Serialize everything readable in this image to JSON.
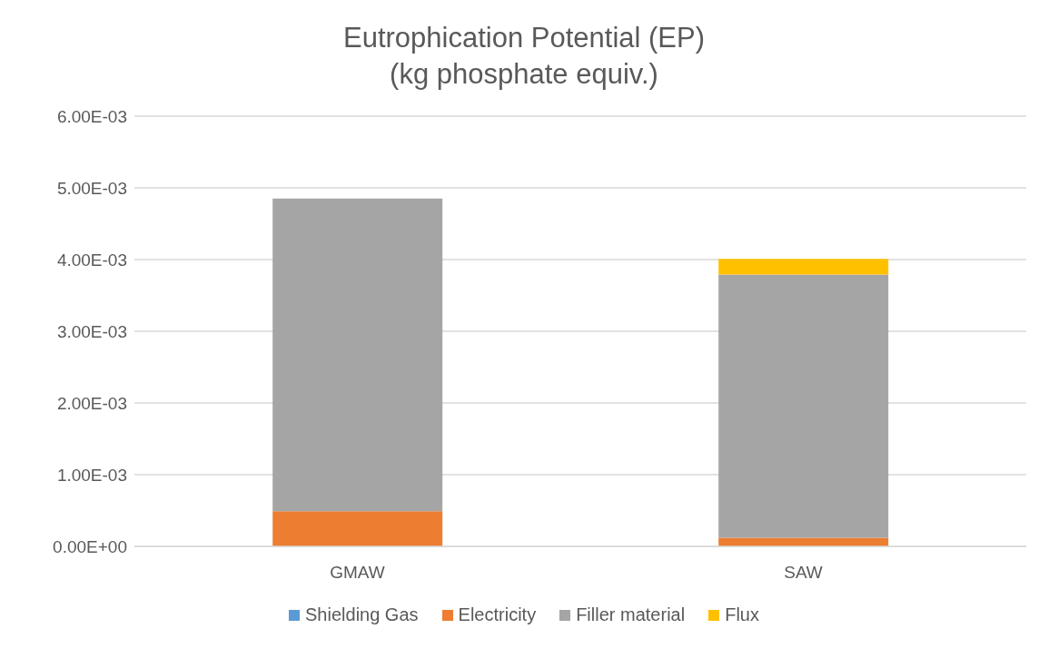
{
  "chart_data": {
    "type": "bar",
    "title": "Eutrophication Potential (EP)\n(kg phosphate equiv.)",
    "categories": [
      "GMAW",
      "SAW"
    ],
    "stacked": true,
    "series": [
      {
        "name": "Shielding Gas",
        "color": "#5b9bd5",
        "values": [
          0,
          0
        ]
      },
      {
        "name": "Electricity",
        "color": "#ed7d31",
        "values": [
          0.00049,
          0.00012
        ]
      },
      {
        "name": "Filler material",
        "color": "#a5a5a5",
        "values": [
          0.00436,
          0.00367
        ]
      },
      {
        "name": "Flux",
        "color": "#ffc000",
        "values": [
          0,
          0.00022
        ]
      }
    ],
    "ylim": [
      0,
      0.006
    ],
    "yticks": [
      {
        "value": 0,
        "label": "0.00E+00"
      },
      {
        "value": 0.001,
        "label": "1.00E-03"
      },
      {
        "value": 0.002,
        "label": "2.00E-03"
      },
      {
        "value": 0.003,
        "label": "3.00E-03"
      },
      {
        "value": 0.004,
        "label": "4.00E-03"
      },
      {
        "value": 0.005,
        "label": "5.00E-03"
      },
      {
        "value": 0.006,
        "label": "6.00E-03"
      }
    ],
    "grid": "y",
    "legend": "bottom"
  }
}
